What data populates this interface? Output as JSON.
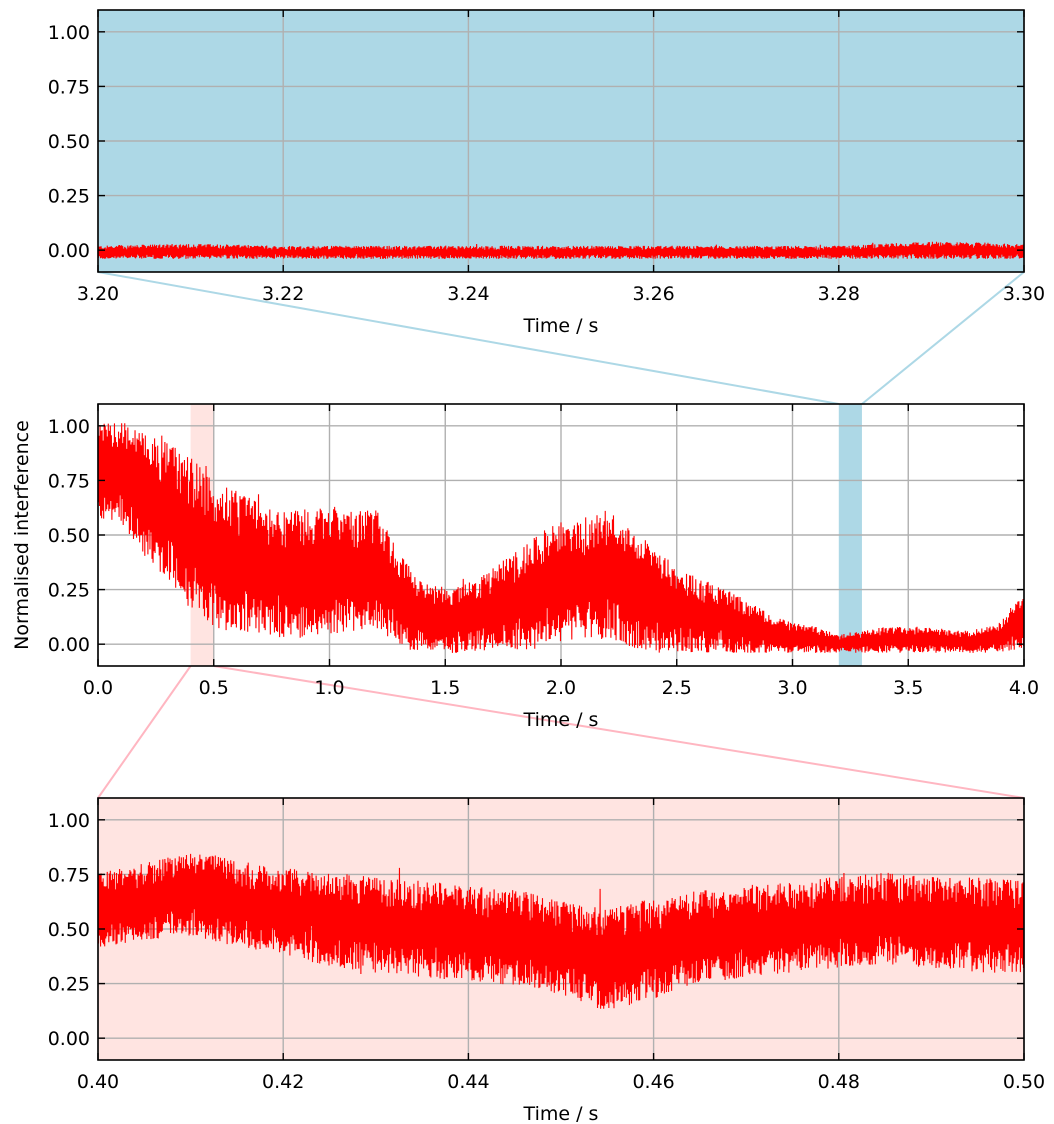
{
  "colors": {
    "signal": "#ff0000",
    "top_background": "#add8e6",
    "bottom_background": "#ffe4e1",
    "grid": "#b0b0b0",
    "connector_top": "#add8e6",
    "connector_bottom": "#ffb6c1",
    "highlight_top": "#add8e6",
    "highlight_bottom": "#ffe4e1"
  },
  "chart_data": [
    {
      "id": "zoom-top",
      "type": "line",
      "xlabel": "Time / s",
      "ylabel": "",
      "xlim": [
        3.2,
        3.3
      ],
      "ylim": [
        -0.1,
        1.1
      ],
      "x_ticks": [
        3.2,
        3.22,
        3.24,
        3.26,
        3.28,
        3.3
      ],
      "x_tick_labels": [
        "3.20",
        "3.22",
        "3.24",
        "3.26",
        "3.28",
        "3.30"
      ],
      "y_ticks": [
        0,
        0.25,
        0.5,
        0.75,
        1.0
      ],
      "y_tick_labels": [
        "0.00",
        "0.25",
        "0.50",
        "0.75",
        "1.00"
      ],
      "grid": true,
      "background": "lightblue",
      "series": [
        {
          "color": "#ff0000",
          "envelope": {
            "x": [
              3.2,
              3.21,
              3.22,
              3.23,
              3.24,
              3.25,
              3.26,
              3.27,
              3.28,
              3.29,
              3.3
            ],
            "upper": [
              0.02,
              0.03,
              0.02,
              0.02,
              0.02,
              0.02,
              0.02,
              0.02,
              0.02,
              0.04,
              0.03
            ],
            "lower": [
              -0.04,
              -0.04,
              -0.04,
              -0.04,
              -0.04,
              -0.04,
              -0.04,
              -0.04,
              -0.04,
              -0.04,
              -0.04
            ]
          }
        }
      ]
    },
    {
      "id": "full-signal",
      "type": "line",
      "xlabel": "Time / s",
      "ylabel": "Normalised interference",
      "xlim": [
        0,
        4.0
      ],
      "ylim": [
        -0.1,
        1.1
      ],
      "x_ticks": [
        0,
        0.5,
        1.0,
        1.5,
        2.0,
        2.5,
        3.0,
        3.5,
        4.0
      ],
      "x_tick_labels": [
        "0.0",
        "0.5",
        "1.0",
        "1.5",
        "2.0",
        "2.5",
        "3.0",
        "3.5",
        "4.0"
      ],
      "y_ticks": [
        0,
        0.25,
        0.5,
        0.75,
        1.0
      ],
      "y_tick_labels": [
        "0.00",
        "0.25",
        "0.50",
        "0.75",
        "1.00"
      ],
      "grid": true,
      "highlight_spans": [
        {
          "x": [
            0.4,
            0.5
          ],
          "color": "mistyrose"
        },
        {
          "x": [
            3.2,
            3.3
          ],
          "color": "lightblue"
        }
      ],
      "series": [
        {
          "color": "#ff0000",
          "envelope": {
            "x": [
              0,
              0.1,
              0.2,
              0.3,
              0.4,
              0.5,
              0.6,
              0.7,
              0.8,
              0.9,
              1.0,
              1.1,
              1.2,
              1.3,
              1.4,
              1.5,
              1.6,
              1.7,
              1.8,
              1.9,
              2.0,
              2.1,
              2.2,
              2.3,
              2.4,
              2.5,
              2.6,
              2.7,
              2.8,
              2.9,
              3.0,
              3.1,
              3.2,
              3.3,
              3.4,
              3.5,
              3.6,
              3.7,
              3.8,
              3.9,
              3.95,
              4.0
            ],
            "upper": [
              1.01,
              1.02,
              0.98,
              0.92,
              0.86,
              0.75,
              0.7,
              0.65,
              0.62,
              0.62,
              0.64,
              0.62,
              0.62,
              0.42,
              0.28,
              0.26,
              0.28,
              0.35,
              0.42,
              0.5,
              0.58,
              0.58,
              0.62,
              0.53,
              0.45,
              0.35,
              0.3,
              0.26,
              0.2,
              0.14,
              0.1,
              0.08,
              0.05,
              0.06,
              0.08,
              0.08,
              0.08,
              0.06,
              0.07,
              0.1,
              0.18,
              0.23
            ],
            "lower": [
              0.58,
              0.55,
              0.4,
              0.3,
              0.15,
              0.08,
              0.05,
              0.03,
              0.02,
              0.03,
              0.05,
              0.05,
              0.08,
              -0.03,
              -0.03,
              -0.04,
              -0.04,
              -0.03,
              -0.03,
              -0.02,
              0.01,
              0.03,
              0.02,
              -0.02,
              -0.04,
              -0.04,
              -0.04,
              -0.04,
              -0.04,
              -0.04,
              -0.04,
              -0.04,
              -0.04,
              -0.04,
              -0.04,
              -0.04,
              -0.04,
              -0.04,
              -0.04,
              -0.04,
              -0.03,
              -0.02
            ]
          }
        }
      ]
    },
    {
      "id": "zoom-bottom",
      "type": "line",
      "xlabel": "Time / s",
      "ylabel": "",
      "xlim": [
        0.4,
        0.5
      ],
      "ylim": [
        -0.1,
        1.1
      ],
      "x_ticks": [
        0.4,
        0.42,
        0.44,
        0.46,
        0.48,
        0.5
      ],
      "x_tick_labels": [
        "0.40",
        "0.42",
        "0.44",
        "0.46",
        "0.48",
        "0.50"
      ],
      "y_ticks": [
        0,
        0.25,
        0.5,
        0.75,
        1.0
      ],
      "y_tick_labels": [
        "0.00",
        "0.25",
        "0.50",
        "0.75",
        "1.00"
      ],
      "grid": true,
      "background": "mistyrose",
      "series": [
        {
          "color": "#ff0000",
          "envelope": {
            "x": [
              0.4,
              0.405,
              0.41,
              0.415,
              0.42,
              0.425,
              0.43,
              0.435,
              0.44,
              0.445,
              0.45,
              0.455,
              0.46,
              0.465,
              0.47,
              0.475,
              0.48,
              0.485,
              0.49,
              0.495,
              0.5
            ],
            "upper": [
              0.76,
              0.8,
              0.86,
              0.82,
              0.78,
              0.76,
              0.74,
              0.72,
              0.7,
              0.68,
              0.64,
              0.6,
              0.64,
              0.68,
              0.7,
              0.72,
              0.74,
              0.76,
              0.74,
              0.74,
              0.72
            ],
            "lower": [
              0.4,
              0.45,
              0.47,
              0.42,
              0.38,
              0.33,
              0.3,
              0.28,
              0.26,
              0.24,
              0.2,
              0.12,
              0.18,
              0.25,
              0.28,
              0.3,
              0.32,
              0.34,
              0.32,
              0.3,
              0.3
            ]
          }
        }
      ]
    }
  ]
}
